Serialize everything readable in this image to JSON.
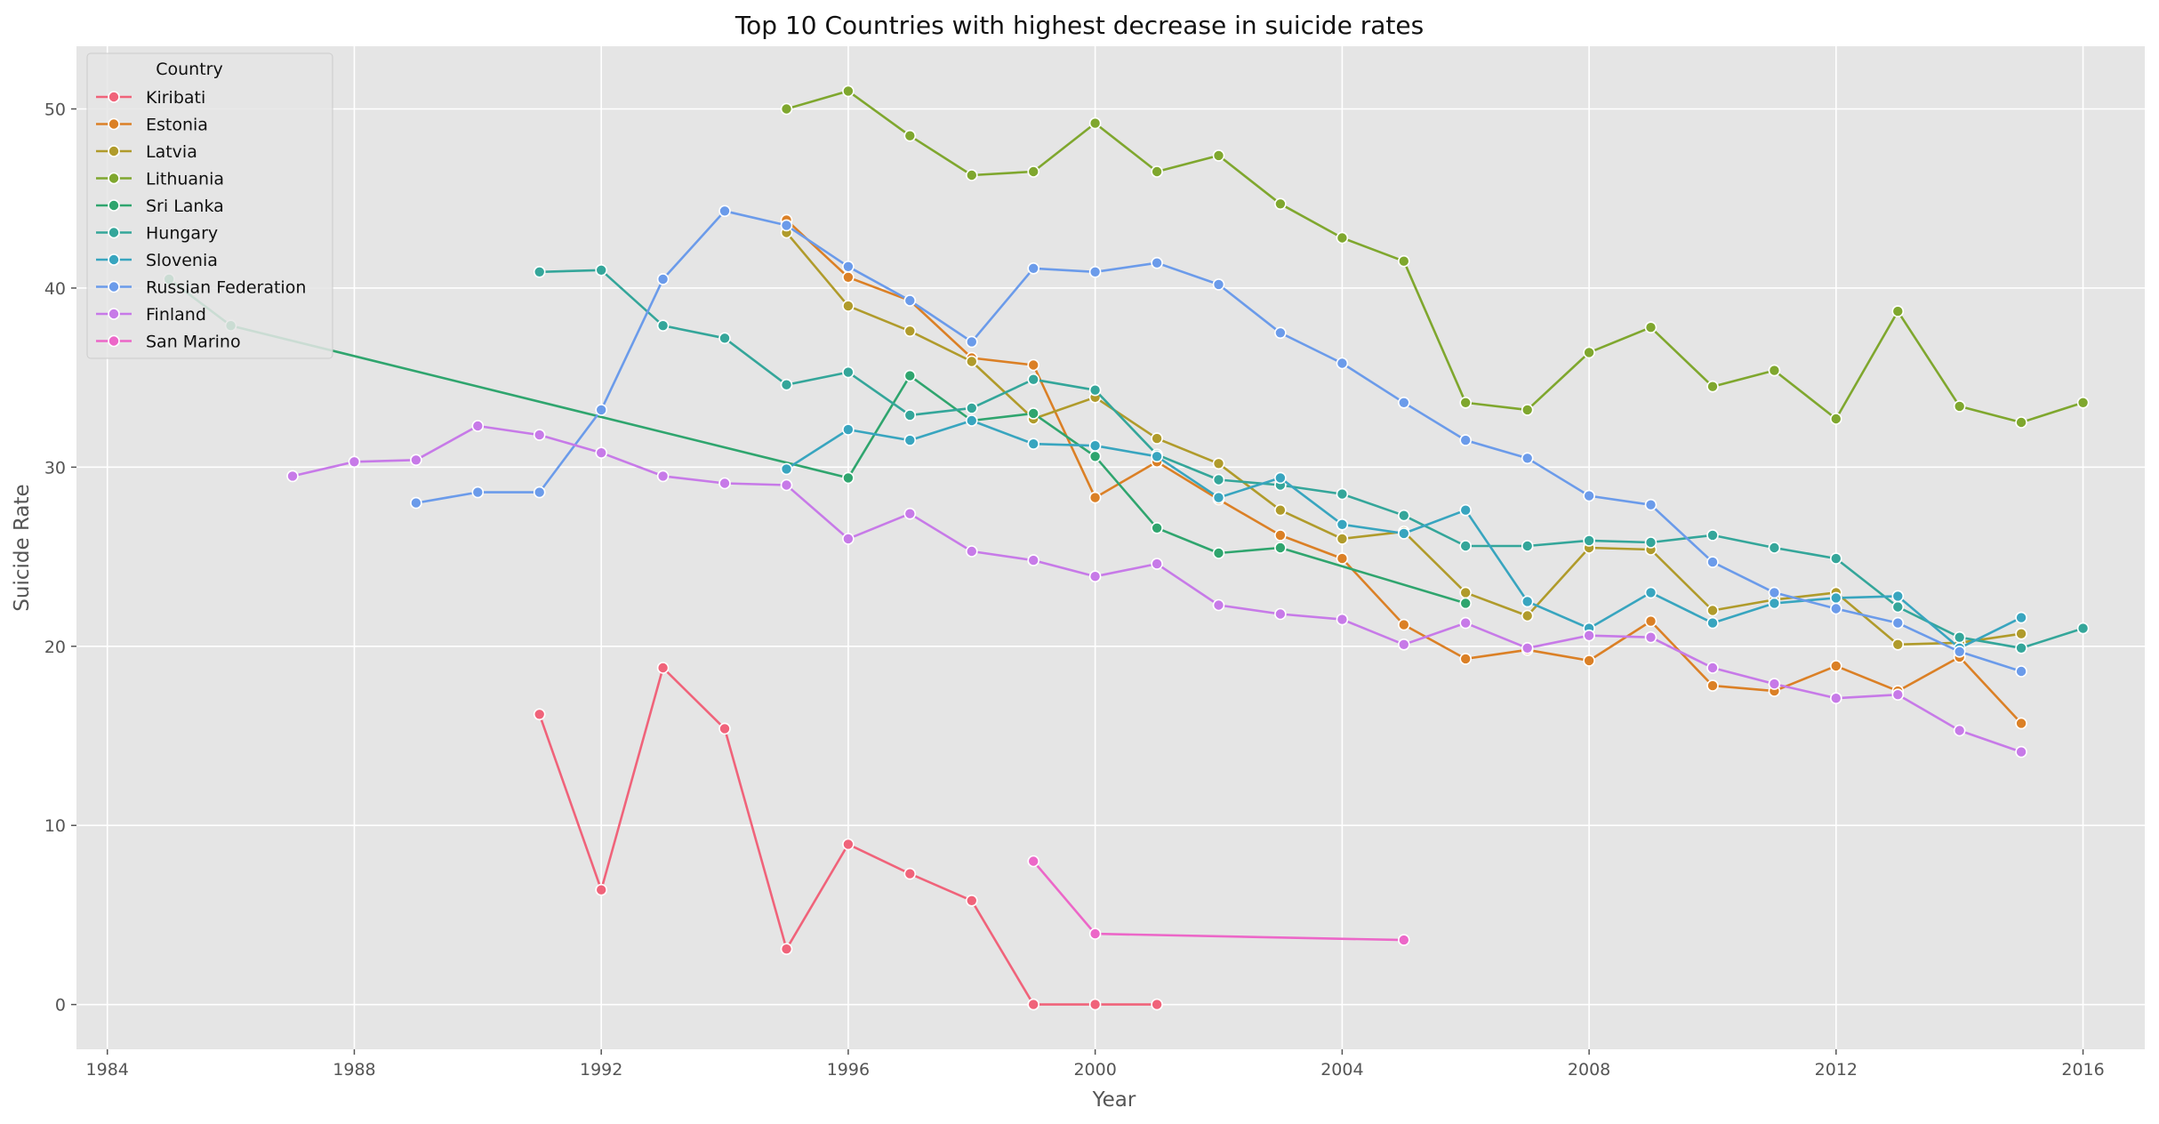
{
  "chart_data": {
    "type": "line",
    "title": "Top 10 Countries with highest decrease in suicide rates",
    "xlabel": "Year",
    "ylabel": "Suicide Rate",
    "xlim": [
      1983.5,
      2017
    ],
    "ylim": [
      -2.5,
      53.5
    ],
    "xticks": [
      1984,
      1988,
      1992,
      1996,
      2000,
      2004,
      2008,
      2012,
      2016
    ],
    "yticks": [
      0,
      10,
      20,
      30,
      40,
      50
    ],
    "grid": true,
    "legend": {
      "title": "Country",
      "placement": "top-left"
    },
    "series": [
      {
        "name": "Kiribati",
        "color": "#f0637a",
        "points": [
          [
            1991,
            16.2
          ],
          [
            1992,
            6.4
          ],
          [
            1993,
            18.8
          ],
          [
            1994,
            15.4
          ],
          [
            1995,
            3.1
          ],
          [
            1996,
            8.95
          ],
          [
            1997,
            7.3
          ],
          [
            1998,
            5.8
          ],
          [
            1999,
            0
          ],
          [
            2000,
            0
          ],
          [
            2001,
            0
          ]
        ]
      },
      {
        "name": "Estonia",
        "color": "#db8026",
        "points": [
          [
            1995,
            43.8
          ],
          [
            1996,
            40.6
          ],
          [
            1997,
            39.3
          ],
          [
            1998,
            36.1
          ],
          [
            1999,
            35.7
          ],
          [
            2000,
            28.3
          ],
          [
            2001,
            30.3
          ],
          [
            2002,
            28.2
          ],
          [
            2003,
            26.2
          ],
          [
            2004,
            24.9
          ],
          [
            2005,
            21.2
          ],
          [
            2006,
            19.3
          ],
          [
            2007,
            19.8
          ],
          [
            2008,
            19.2
          ],
          [
            2009,
            21.4
          ],
          [
            2010,
            17.8
          ],
          [
            2011,
            17.5
          ],
          [
            2012,
            18.9
          ],
          [
            2013,
            17.5
          ],
          [
            2014,
            19.4
          ],
          [
            2015,
            15.7
          ]
        ]
      },
      {
        "name": "Latvia",
        "color": "#b09b2b",
        "points": [
          [
            1995,
            43.1
          ],
          [
            1996,
            39.0
          ],
          [
            1997,
            37.6
          ],
          [
            1998,
            35.9
          ],
          [
            1999,
            32.7
          ],
          [
            2000,
            33.9
          ],
          [
            2001,
            31.6
          ],
          [
            2002,
            30.2
          ],
          [
            2003,
            27.6
          ],
          [
            2004,
            26.0
          ],
          [
            2005,
            26.4
          ],
          [
            2006,
            23.0
          ],
          [
            2007,
            21.7
          ],
          [
            2008,
            25.5
          ],
          [
            2009,
            25.4
          ],
          [
            2010,
            22.0
          ],
          [
            2011,
            22.6
          ],
          [
            2012,
            23.0
          ],
          [
            2013,
            20.1
          ],
          [
            2014,
            20.2
          ],
          [
            2015,
            20.7
          ]
        ]
      },
      {
        "name": "Lithuania",
        "color": "#7fa72e",
        "points": [
          [
            1995,
            50.0
          ],
          [
            1996,
            51.0
          ],
          [
            1997,
            48.5
          ],
          [
            1998,
            46.3
          ],
          [
            1999,
            46.5
          ],
          [
            2000,
            49.2
          ],
          [
            2001,
            46.5
          ],
          [
            2002,
            47.4
          ],
          [
            2003,
            44.7
          ],
          [
            2004,
            42.8
          ],
          [
            2005,
            41.5
          ],
          [
            2006,
            33.6
          ],
          [
            2007,
            33.2
          ],
          [
            2008,
            36.4
          ],
          [
            2009,
            37.8
          ],
          [
            2010,
            34.5
          ],
          [
            2011,
            35.4
          ],
          [
            2012,
            32.7
          ],
          [
            2013,
            38.7
          ],
          [
            2014,
            33.4
          ],
          [
            2015,
            32.5
          ],
          [
            2016,
            33.6
          ]
        ]
      },
      {
        "name": "Sri Lanka",
        "color": "#2fa56e",
        "points": [
          [
            1985,
            40.5
          ],
          [
            1986,
            37.9
          ],
          [
            1996,
            29.4
          ],
          [
            1997,
            35.1
          ],
          [
            1998,
            32.6
          ],
          [
            1999,
            33.0
          ],
          [
            2000,
            30.6
          ],
          [
            2001,
            26.6
          ],
          [
            2002,
            25.2
          ],
          [
            2003,
            25.5
          ],
          [
            2006,
            22.4
          ]
        ]
      },
      {
        "name": "Hungary",
        "color": "#34a69a",
        "points": [
          [
            1991,
            40.9
          ],
          [
            1992,
            41.0
          ],
          [
            1993,
            37.9
          ],
          [
            1994,
            37.2
          ],
          [
            1995,
            34.6
          ],
          [
            1996,
            35.3
          ],
          [
            1997,
            32.9
          ],
          [
            1998,
            33.3
          ],
          [
            1999,
            34.9
          ],
          [
            2000,
            34.3
          ],
          [
            2001,
            30.7
          ],
          [
            2002,
            29.3
          ],
          [
            2003,
            29.0
          ],
          [
            2004,
            28.5
          ],
          [
            2005,
            27.3
          ],
          [
            2006,
            25.6
          ],
          [
            2007,
            25.6
          ],
          [
            2008,
            25.9
          ],
          [
            2009,
            25.8
          ],
          [
            2010,
            26.2
          ],
          [
            2011,
            25.5
          ],
          [
            2012,
            24.9
          ],
          [
            2013,
            22.2
          ],
          [
            2014,
            20.5
          ],
          [
            2015,
            19.9
          ],
          [
            2016,
            21.0
          ]
        ]
      },
      {
        "name": "Slovenia",
        "color": "#38a5bf",
        "points": [
          [
            1995,
            29.9
          ],
          [
            1996,
            32.1
          ],
          [
            1997,
            31.5
          ],
          [
            1998,
            32.6
          ],
          [
            1999,
            31.3
          ],
          [
            2000,
            31.2
          ],
          [
            2001,
            30.6
          ],
          [
            2002,
            28.3
          ],
          [
            2003,
            29.4
          ],
          [
            2004,
            26.8
          ],
          [
            2005,
            26.3
          ],
          [
            2006,
            27.6
          ],
          [
            2007,
            22.5
          ],
          [
            2008,
            21.0
          ],
          [
            2009,
            23.0
          ],
          [
            2010,
            21.3
          ],
          [
            2011,
            22.4
          ],
          [
            2012,
            22.7
          ],
          [
            2013,
            22.8
          ],
          [
            2014,
            19.9
          ],
          [
            2015,
            21.6
          ]
        ]
      },
      {
        "name": "Russian Federation",
        "color": "#6b9bea",
        "points": [
          [
            1989,
            28.0
          ],
          [
            1990,
            28.6
          ],
          [
            1991,
            28.6
          ],
          [
            1992,
            33.2
          ],
          [
            1993,
            40.5
          ],
          [
            1994,
            44.3
          ],
          [
            1995,
            43.5
          ],
          [
            1996,
            41.2
          ],
          [
            1997,
            39.3
          ],
          [
            1998,
            37.0
          ],
          [
            1999,
            41.1
          ],
          [
            2000,
            40.9
          ],
          [
            2001,
            41.4
          ],
          [
            2002,
            40.2
          ],
          [
            2003,
            37.5
          ],
          [
            2004,
            35.8
          ],
          [
            2005,
            33.6
          ],
          [
            2006,
            31.5
          ],
          [
            2007,
            30.5
          ],
          [
            2008,
            28.4
          ],
          [
            2009,
            27.9
          ],
          [
            2010,
            24.7
          ],
          [
            2011,
            23.0
          ],
          [
            2012,
            22.1
          ],
          [
            2013,
            21.3
          ],
          [
            2014,
            19.7
          ],
          [
            2015,
            18.6
          ]
        ]
      },
      {
        "name": "Finland",
        "color": "#c77ae8",
        "points": [
          [
            1987,
            29.5
          ],
          [
            1988,
            30.3
          ],
          [
            1989,
            30.4
          ],
          [
            1990,
            32.3
          ],
          [
            1991,
            31.8
          ],
          [
            1992,
            30.8
          ],
          [
            1993,
            29.5
          ],
          [
            1994,
            29.1
          ],
          [
            1995,
            29.0
          ],
          [
            1996,
            26.0
          ],
          [
            1997,
            27.4
          ],
          [
            1998,
            25.3
          ],
          [
            1999,
            24.8
          ],
          [
            2000,
            23.9
          ],
          [
            2001,
            24.6
          ],
          [
            2002,
            22.3
          ],
          [
            2003,
            21.8
          ],
          [
            2004,
            21.5
          ],
          [
            2005,
            20.1
          ],
          [
            2006,
            21.3
          ],
          [
            2007,
            19.9
          ],
          [
            2008,
            20.6
          ],
          [
            2009,
            20.5
          ],
          [
            2010,
            18.8
          ],
          [
            2011,
            17.9
          ],
          [
            2012,
            17.1
          ],
          [
            2013,
            17.3
          ],
          [
            2014,
            15.3
          ],
          [
            2015,
            14.1
          ]
        ]
      },
      {
        "name": "San Marino",
        "color": "#ec67c8",
        "points": [
          [
            1999,
            8.0
          ],
          [
            2000,
            3.95
          ],
          [
            2005,
            3.6
          ]
        ]
      }
    ]
  }
}
